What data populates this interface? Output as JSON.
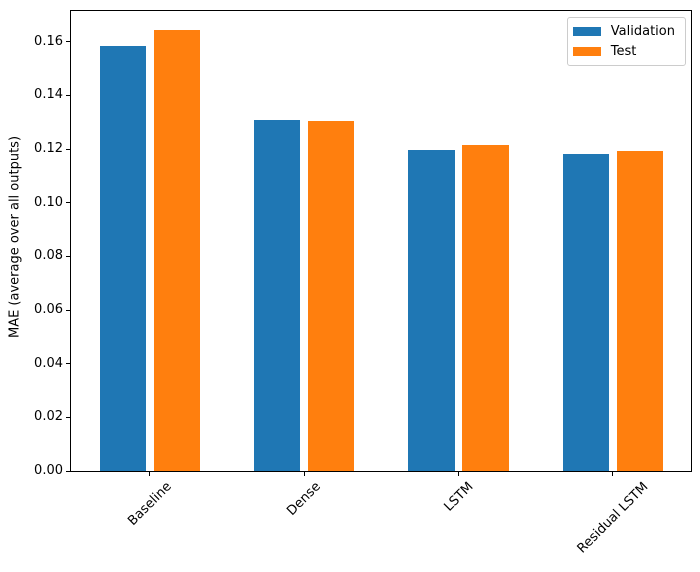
{
  "figure": {
    "background_color": "#ffffff",
    "spine_color": "#000000",
    "text_color": "#000000"
  },
  "chart_data": {
    "type": "bar",
    "title": "",
    "xlabel": "",
    "ylabel": "MAE (average over all outputs)",
    "categories": [
      "Baseline",
      "Dense",
      "LSTM",
      "Residual LSTM"
    ],
    "series": [
      {
        "name": "Validation",
        "color": "#1f77b4",
        "values": [
          0.1585,
          0.1307,
          0.1198,
          0.1181
        ]
      },
      {
        "name": "Test",
        "color": "#ff7f0e",
        "values": [
          0.1645,
          0.1306,
          0.1217,
          0.1192
        ]
      }
    ],
    "ytick_labels": [
      "0.00",
      "0.02",
      "0.04",
      "0.06",
      "0.08",
      "0.10",
      "0.12",
      "0.14",
      "0.16"
    ],
    "ytick_values": [
      0.0,
      0.02,
      0.04,
      0.06,
      0.08,
      0.1,
      0.12,
      0.14,
      0.16
    ],
    "ylim": [
      0,
      0.1715
    ],
    "xlim": [
      -0.512,
      3.507
    ],
    "bar_width": 0.3,
    "bar_offset": 0.175,
    "xtick_rotation_deg": 45,
    "grid": false,
    "legend": {
      "position": "upper right",
      "border_color": "#cccccc",
      "entries": [
        "Validation",
        "Test"
      ]
    }
  }
}
